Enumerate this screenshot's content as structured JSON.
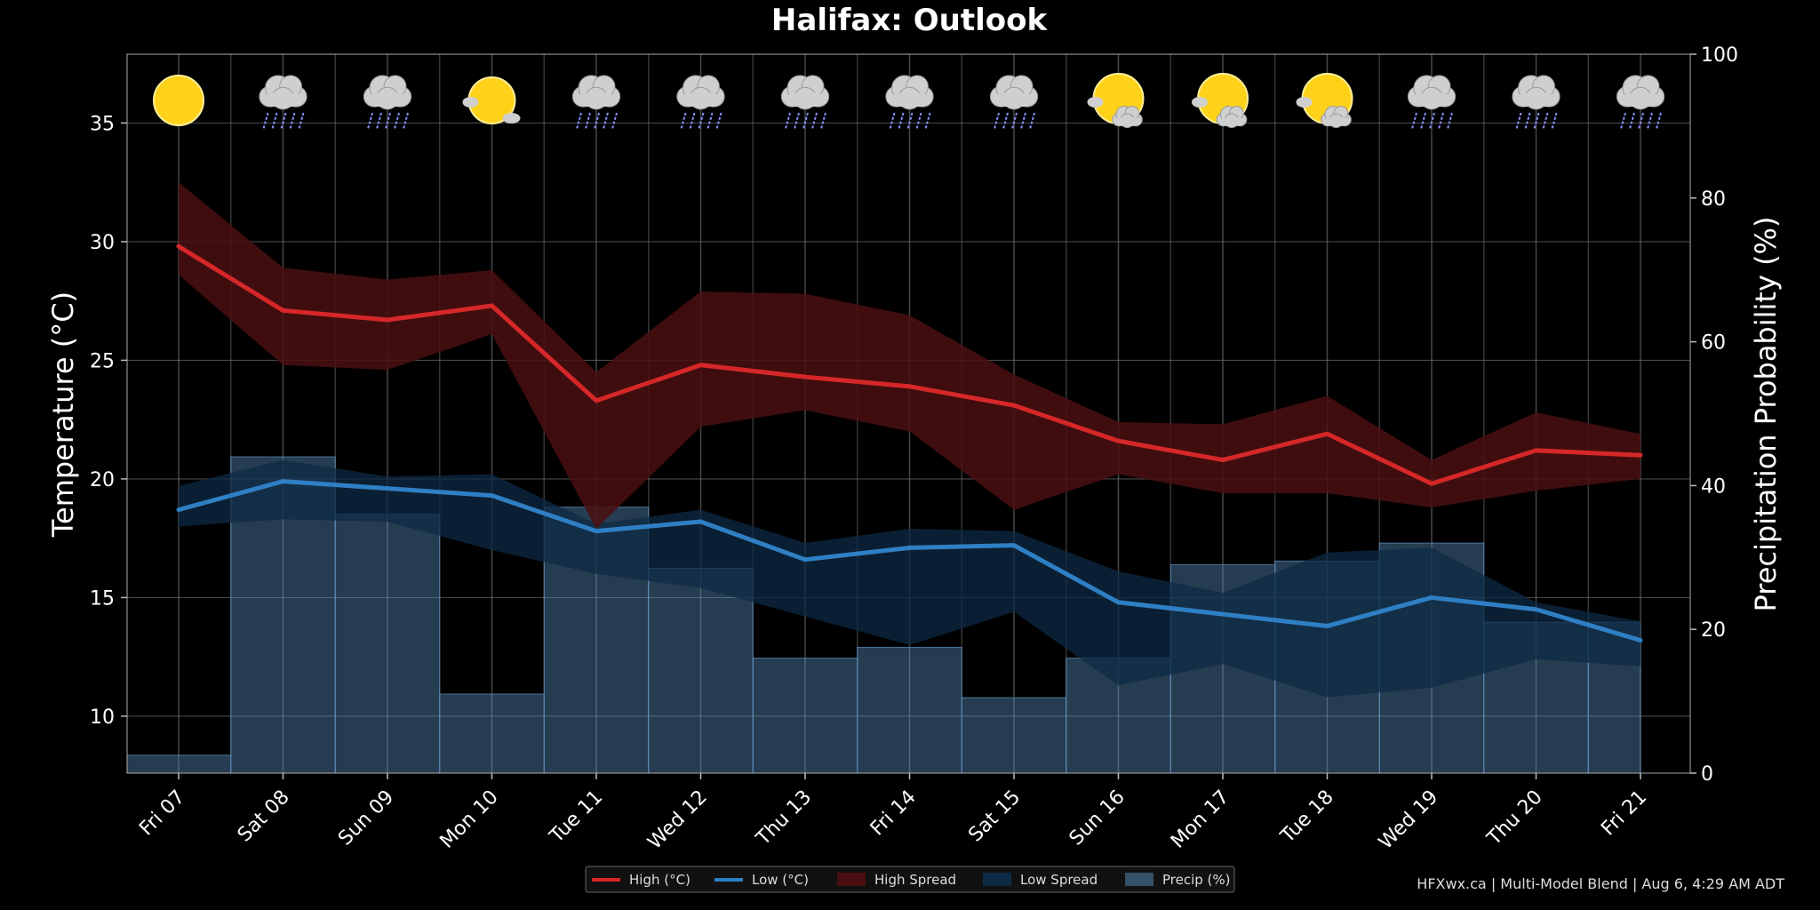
{
  "chart_data": {
    "type": "line",
    "title": "Halifax: Outlook",
    "categories": [
      "Fri 07",
      "Sat 08",
      "Sun 09",
      "Mon 10",
      "Tue 11",
      "Wed 12",
      "Thu 13",
      "Fri 14",
      "Sat 15",
      "Sun 16",
      "Mon 17",
      "Tue 18",
      "Wed 19",
      "Thu 20",
      "Fri 21"
    ],
    "ylabel": "Temperature (°C)",
    "ylim": [
      7.6,
      37.9
    ],
    "yticks": [
      10,
      15,
      20,
      25,
      30,
      35
    ],
    "y2label": "Precipitation Probability (%)",
    "y2lim": [
      0,
      100
    ],
    "y2ticks": [
      0,
      20,
      40,
      60,
      80,
      100
    ],
    "grid": true,
    "legend_position": "bottom-center",
    "colors": {
      "high": "#d62728",
      "low": "#2f7fc4",
      "high_spread": "#4a0f10",
      "low_spread": "#0d2a44",
      "precip": "#5b8fbf",
      "background": "#000000"
    },
    "series": [
      {
        "name": "High (°C)",
        "values": [
          29.8,
          27.1,
          26.7,
          27.3,
          23.3,
          24.8,
          24.3,
          23.9,
          23.1,
          21.6,
          20.8,
          21.9,
          19.8,
          21.2,
          21.0
        ]
      },
      {
        "name": "Low (°C)",
        "values": [
          18.7,
          19.9,
          19.6,
          19.3,
          17.8,
          18.2,
          16.6,
          17.1,
          17.2,
          14.8,
          14.3,
          13.8,
          15.0,
          14.5,
          13.2
        ]
      },
      {
        "name": "High Spread",
        "lower": [
          28.6,
          24.8,
          24.6,
          26.1,
          17.9,
          22.2,
          22.9,
          22.0,
          18.7,
          20.2,
          19.4,
          19.4,
          18.8,
          19.5,
          20.0
        ],
        "upper": [
          32.5,
          28.9,
          28.4,
          28.8,
          24.5,
          27.9,
          27.8,
          26.9,
          24.4,
          22.4,
          22.3,
          23.5,
          20.8,
          22.8,
          21.9
        ]
      },
      {
        "name": "Low Spread",
        "lower": [
          18.0,
          18.3,
          18.2,
          17.0,
          16.0,
          15.4,
          14.2,
          13.0,
          14.4,
          11.3,
          12.2,
          10.8,
          11.2,
          12.4,
          12.1
        ],
        "upper": [
          19.7,
          20.8,
          20.1,
          20.2,
          18.1,
          18.7,
          17.3,
          17.9,
          17.8,
          16.1,
          15.2,
          16.9,
          17.1,
          14.8,
          14.0
        ]
      },
      {
        "name": "Precip (%)",
        "values": [
          2.5,
          44,
          36,
          11,
          37,
          28.5,
          16,
          17.5,
          10.5,
          16,
          29,
          29.5,
          32,
          21,
          21
        ]
      }
    ],
    "weather_icons": [
      "sun-icon",
      "rain-cloud-icon",
      "rain-cloud-icon",
      "sun-partly-cloudy-icon",
      "rain-cloud-icon",
      "rain-cloud-icon",
      "rain-cloud-icon",
      "rain-cloud-icon",
      "rain-cloud-icon",
      "sun-cloud-icon",
      "sun-cloud-icon",
      "sun-cloud-icon",
      "rain-cloud-icon",
      "rain-cloud-icon",
      "rain-cloud-icon"
    ]
  },
  "footer": {
    "credit": "HFXwx.ca | Multi-Model Blend | Aug 6, 4:29 AM ADT"
  }
}
